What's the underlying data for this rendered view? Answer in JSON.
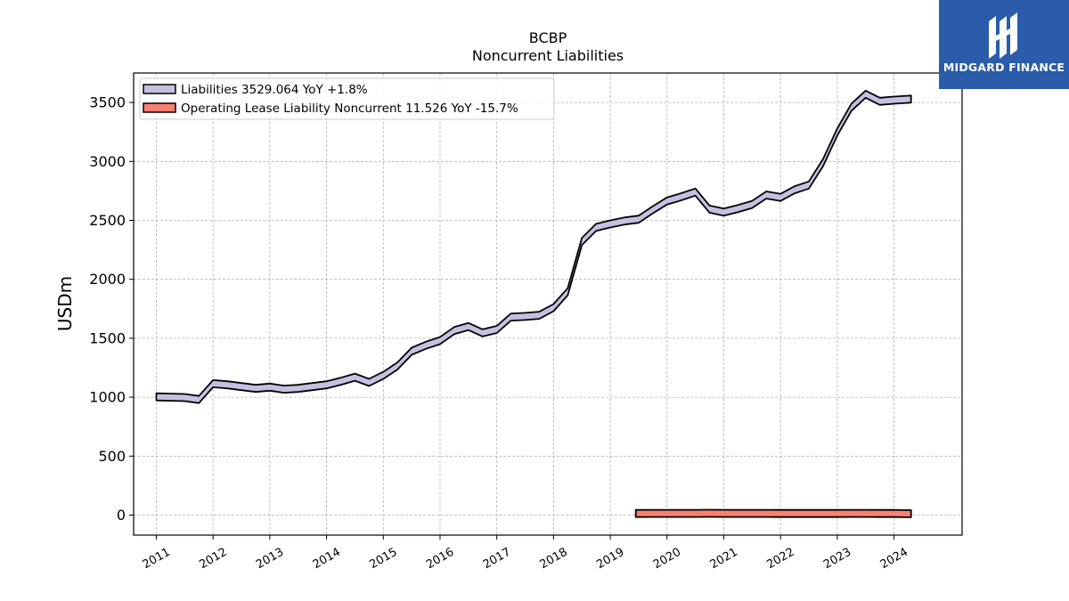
{
  "brand": {
    "name": "MIDGARD FINANCE",
    "bg_color": "#2a5caa"
  },
  "chart_data": {
    "type": "area",
    "title": "BCBP",
    "subtitle": "Noncurrent  Liabilities",
    "xlabel": "",
    "ylabel": "USDm",
    "x_ticks": [
      "2011",
      "2012",
      "2013",
      "2014",
      "2015",
      "2016",
      "2017",
      "2018",
      "2019",
      "2020",
      "2021",
      "2022",
      "2023",
      "2024"
    ],
    "y_ticks": [
      0,
      500,
      1000,
      1500,
      2000,
      2500,
      3000,
      3500
    ],
    "xlim": [
      2010.6,
      2025.2
    ],
    "ylim": [
      -170,
      3750
    ],
    "grid": true,
    "legend_position": "top-left",
    "series": [
      {
        "name": "Liabilities",
        "legend_label": "Liabilities  3529.064 YoY +1.8%",
        "color": "#c4c1e0",
        "x": [
          2011.0,
          2011.25,
          2011.5,
          2011.75,
          2012.0,
          2012.25,
          2012.5,
          2012.75,
          2013.0,
          2013.25,
          2013.5,
          2013.75,
          2014.0,
          2014.25,
          2014.5,
          2014.75,
          2015.0,
          2015.25,
          2015.5,
          2015.75,
          2016.0,
          2016.25,
          2016.5,
          2016.75,
          2017.0,
          2017.25,
          2017.5,
          2017.75,
          2018.0,
          2018.25,
          2018.5,
          2018.75,
          2019.0,
          2019.25,
          2019.5,
          2019.75,
          2020.0,
          2020.25,
          2020.5,
          2020.75,
          2021.0,
          2021.25,
          2021.5,
          2021.75,
          2022.0,
          2022.25,
          2022.5,
          2022.75,
          2023.0,
          2023.25,
          2023.5,
          2023.75,
          2024.0,
          2024.3
        ],
        "values": [
          1003,
          1000,
          997,
          980,
          1115,
          1105,
          1090,
          1075,
          1085,
          1068,
          1075,
          1090,
          1105,
          1135,
          1170,
          1125,
          1185,
          1265,
          1390,
          1440,
          1480,
          1565,
          1600,
          1545,
          1575,
          1680,
          1685,
          1695,
          1760,
          1895,
          2320,
          2440,
          2470,
          2495,
          2510,
          2590,
          2665,
          2700,
          2740,
          2595,
          2570,
          2600,
          2635,
          2715,
          2695,
          2760,
          2800,
          2990,
          3250,
          3460,
          3570,
          3510,
          3520,
          3529
        ]
      },
      {
        "name": "Operating Lease Liability Noncurrent",
        "legend_label": "Operating Lease Liability Noncurrent  11.526 YoY -15.7%",
        "color": "#fa8072",
        "x": [
          2019.45,
          2019.75,
          2020.0,
          2020.25,
          2020.5,
          2020.75,
          2021.0,
          2021.25,
          2021.5,
          2021.75,
          2022.0,
          2022.25,
          2022.5,
          2022.75,
          2023.0,
          2023.25,
          2023.5,
          2023.75,
          2024.0,
          2024.3
        ],
        "values": [
          13.6,
          14.0,
          14.2,
          14.5,
          14.3,
          14.8,
          14.6,
          14.4,
          14.2,
          14.0,
          13.8,
          13.7,
          13.6,
          13.5,
          13.8,
          14.0,
          14.1,
          13.9,
          13.7,
          11.526
        ]
      }
    ]
  }
}
